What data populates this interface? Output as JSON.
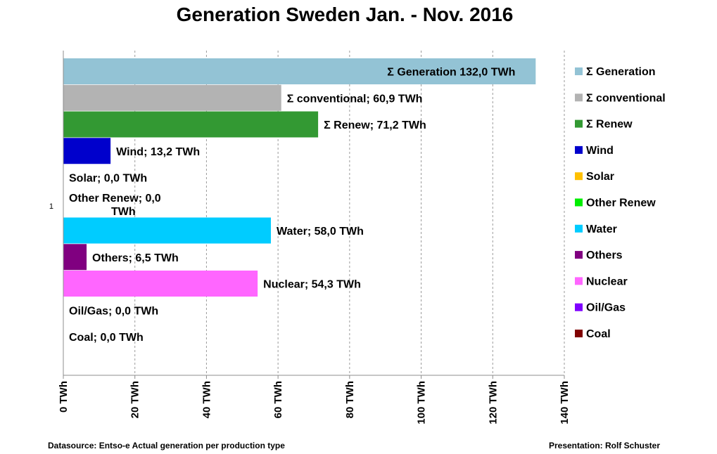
{
  "chart_data": {
    "type": "bar",
    "orientation": "horizontal",
    "title": "Generation Sweden Jan.  - Nov.  2016",
    "category_label": "1",
    "xlim": [
      0,
      140
    ],
    "xticks": [
      0,
      20,
      40,
      60,
      80,
      100,
      120,
      140
    ],
    "tick_suffix": " TWh",
    "grid": true,
    "legend_position": "right",
    "series": [
      {
        "name": "Σ Generation",
        "value": 132.0,
        "label": "Σ Generation 132,0 TWh",
        "color": "#93c3d5"
      },
      {
        "name": "Σ conventional",
        "value": 60.9,
        "label": "Σ conventional; 60,9 TWh",
        "color": "#b3b3b3"
      },
      {
        "name": "Σ Renew",
        "value": 71.2,
        "label": "Σ Renew; 71,2 TWh",
        "color": "#339933"
      },
      {
        "name": "Wind",
        "value": 13.2,
        "label": "Wind; 13,2 TWh",
        "color": "#0000cc"
      },
      {
        "name": "Solar",
        "value": 0.0,
        "label": "Solar; 0,0 TWh",
        "color": "#ffc000"
      },
      {
        "name": "Other Renew",
        "value": 0.0,
        "label": "Other Renew; 0,0 TWh",
        "color": "#00ee00"
      },
      {
        "name": "Water",
        "value": 58.0,
        "label": "Water; 58,0 TWh",
        "color": "#00ccff"
      },
      {
        "name": "Others",
        "value": 6.5,
        "label": "Others; 6,5 TWh",
        "color": "#800080"
      },
      {
        "name": "Nuclear",
        "value": 54.3,
        "label": "Nuclear; 54,3 TWh",
        "color": "#ff66ff"
      },
      {
        "name": "Oil/Gas",
        "value": 0.0,
        "label": "Oil/Gas; 0,0 TWh",
        "color": "#7f00ff"
      },
      {
        "name": "Coal",
        "value": 0.0,
        "label": "Coal; 0,0 TWh",
        "color": "#800000"
      }
    ]
  },
  "footer": {
    "source": "Datasource: Entso-e  Actual generation per production type",
    "credit": "Presentation: Rolf Schuster"
  }
}
